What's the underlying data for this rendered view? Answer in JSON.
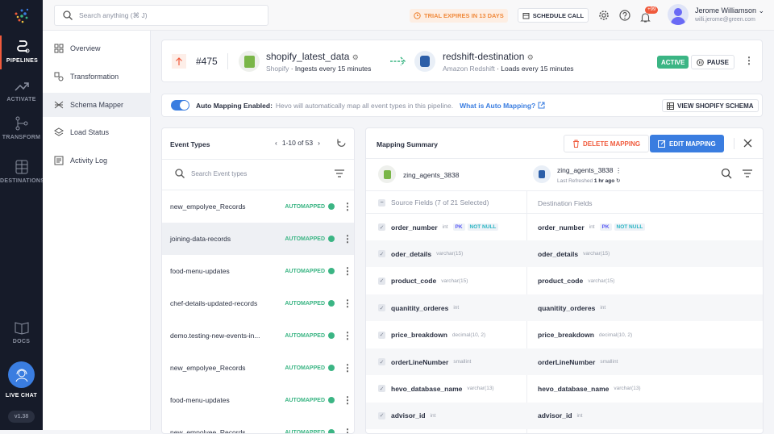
{
  "sidebar": {
    "items": [
      {
        "label": "PIPELINES"
      },
      {
        "label": "ACTIVATE"
      },
      {
        "label": "TRANSFORM"
      },
      {
        "label": "DESTINATIONS"
      },
      {
        "label": "DOCS"
      }
    ],
    "live_chat": "LIVE CHAT",
    "version": "v1.38"
  },
  "header": {
    "search_placeholder": "Search anything (⌘ J)",
    "trial": "TRIAL EXPIRES IN 13 DAYS",
    "schedule_call": "SCHEDULE CALL",
    "notifications": "+99",
    "user_name": "Jerome Williamson",
    "user_email": "willi.jerome@green.com"
  },
  "subnav": {
    "items": [
      {
        "label": "Overview"
      },
      {
        "label": "Transformation"
      },
      {
        "label": "Schema Mapper"
      },
      {
        "label": "Load Status"
      },
      {
        "label": "Activity Log"
      }
    ]
  },
  "pipeline": {
    "id": "#475",
    "source_name": "shopify_latest_data",
    "source_type": "Shopify",
    "source_freq": "Ingests every 15 minutes",
    "dest_name": "redshift-destination",
    "dest_type": "Amazon Redshift",
    "dest_freq": "Loads every 15 minutes",
    "status": "ACTIVE",
    "pause": "PAUSE"
  },
  "automap": {
    "label": "Auto Mapping Enabled:",
    "desc": "Hevo will automatically map all event types in this pipeline.",
    "link": "What is Auto Mapping?",
    "view_schema": "VIEW SHOPIFY SCHEMA",
    "enabled": true
  },
  "events": {
    "title": "Event Types",
    "pager": "1-10 of 53",
    "search_placeholder": "Search Event types",
    "status_label": "AUTOMAPPED",
    "items": [
      "new_empolyee_Records",
      "joining-data-records",
      "food-menu-updates",
      "chef-details-updated-records",
      "demo.testing-new-events-in...",
      "new_empolyee_Records",
      "food-menu-updates",
      "new_empolyee_Records"
    ]
  },
  "mapping": {
    "title": "Mapping Summary",
    "delete": "DELETE MAPPING",
    "edit": "EDIT MAPPING",
    "source_table": "zing_agents_3838",
    "dest_table": "zing_agents_3838",
    "last_refreshed_label": "Last Refreshed",
    "last_refreshed": "1 hr ago",
    "source_header": "Source Fields (7 of 21 Selected)",
    "dest_header": "Destination Fields",
    "fields": [
      {
        "name": "order_number",
        "type": "int",
        "pk": "PK",
        "nn": "NOT NULL"
      },
      {
        "name": "oder_details",
        "type": "varchar(15)"
      },
      {
        "name": "product_code",
        "type": "varchar(15)"
      },
      {
        "name": "quanitity_orderes",
        "type": "int"
      },
      {
        "name": "price_breakdown",
        "type": "decimal(10, 2)"
      },
      {
        "name": "orderLineNumber",
        "type": "smallint"
      },
      {
        "name": "hevo_database_name",
        "type": "varchar(13)"
      },
      {
        "name": "advisor_id",
        "type": "int"
      }
    ]
  },
  "colors": {
    "sidebar": "#161b29",
    "accent": "#3a7de0",
    "active": "#3bb584",
    "danger": "#f05a3c",
    "trial": "#f08a3c"
  }
}
